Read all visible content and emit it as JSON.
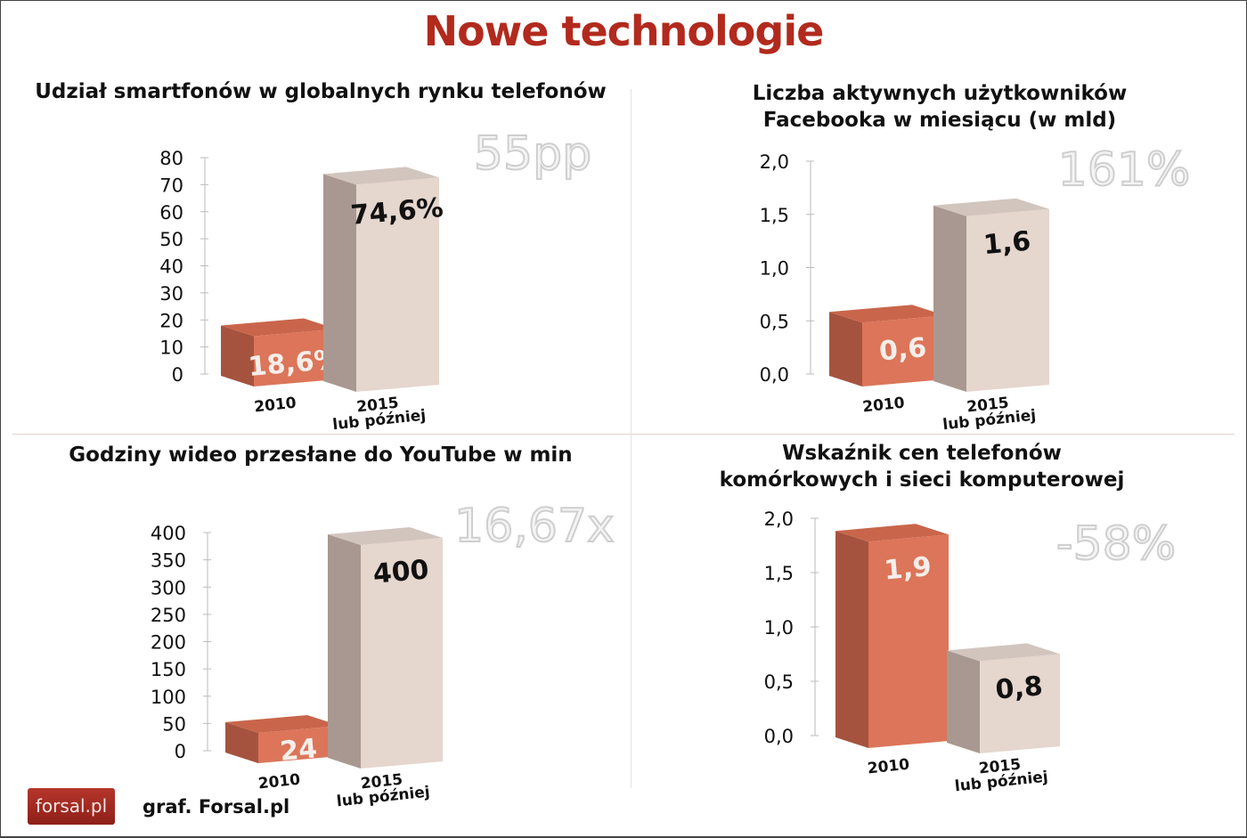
{
  "title": "Nowe technologie",
  "credit": "graf. Forsal.pl",
  "logo": "forsal.pl",
  "colors": {
    "title": "#b22a1e",
    "bar2010_front": "#dc7559",
    "bar2010_side": "#a5533f",
    "bar2010_top": "#c9654a",
    "bar2015_front": "#e5d6ce",
    "bar2015_side": "#a99891",
    "bar2015_top": "#d2c5be"
  },
  "chart_data": [
    {
      "type": "bar",
      "title": "Udział smartfonów w globalnych rynku telefonów",
      "categories": [
        "2010",
        "2015 lub później"
      ],
      "values": [
        18.6,
        74.6
      ],
      "value_labels": [
        "18,6%",
        "74,6%"
      ],
      "ylim": [
        0,
        80
      ],
      "yticks": [
        "0",
        "10",
        "20",
        "30",
        "40",
        "50",
        "60",
        "70",
        "80"
      ],
      "annotation": "55pp"
    },
    {
      "type": "bar",
      "title": "Liczba aktywnych użytkowników Facebooka w miesiącu (w mld)",
      "categories": [
        "2010",
        "2015 lub później"
      ],
      "values": [
        0.6,
        1.6
      ],
      "value_labels": [
        "0,6",
        "1,6"
      ],
      "ylim": [
        0,
        2
      ],
      "yticks": [
        "0,0",
        "0,5",
        "1,0",
        "1,5",
        "2,0"
      ],
      "annotation": "161%"
    },
    {
      "type": "bar",
      "title": "Godziny wideo przesłane do YouTube w min",
      "categories": [
        "2010",
        "2015 lub później"
      ],
      "values": [
        24,
        400
      ],
      "value_labels": [
        "24",
        "400"
      ],
      "ylim": [
        0,
        400
      ],
      "yticks": [
        "0",
        "50",
        "100",
        "150",
        "200",
        "250",
        "300",
        "350",
        "400"
      ],
      "annotation": "16,67x"
    },
    {
      "type": "bar",
      "title": "Wskaźnik cen telefonów komórkowych i sieci komputerowej",
      "categories": [
        "2010",
        "2015 lub później"
      ],
      "values": [
        1.9,
        0.8
      ],
      "value_labels": [
        "1,9",
        "0,8"
      ],
      "ylim": [
        0,
        2
      ],
      "yticks": [
        "0,0",
        "0,5",
        "1,0",
        "1,5",
        "2,0"
      ],
      "annotation": "-58%"
    }
  ]
}
